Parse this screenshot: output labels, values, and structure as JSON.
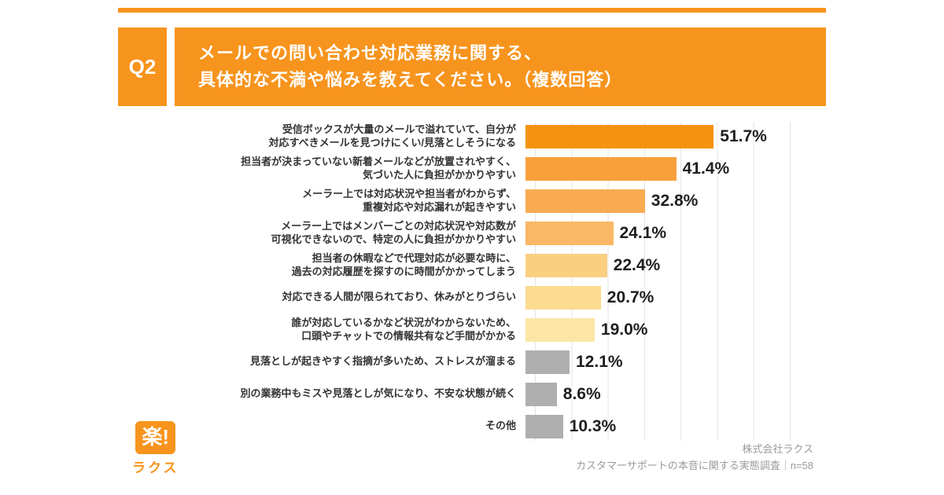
{
  "header": {
    "q_label": "Q2",
    "title_lines": [
      "メールでの問い合わせ対応業務に関する、",
      "具体的な不満や悩みを教えてください。（複数回答）"
    ]
  },
  "chart_data": {
    "type": "bar",
    "orientation": "horizontal",
    "title": "",
    "xlabel": "",
    "ylabel": "",
    "xlim": [
      0,
      70
    ],
    "grid": true,
    "categories": [
      "受信ボックスが大量のメールで溢れていて、自分が\n対応すべきメールを見つけにくい/見落としそうになる",
      "担当者が決まっていない新着メールなどが放置されやすく、\n気づいた人に負担がかかりやすい",
      "メーラー上では対応状況や担当者がわからず、\n重複対応や対応漏れが起きやすい",
      "メーラー上ではメンバーごとの対応状況や対応数が\n可視化できないので、特定の人に負担がかかりやすい",
      "担当者の休暇などで代理対応が必要な時に、\n過去の対応履歴を探すのに時間がかかってしまう",
      "対応できる人間が限られており、休みがとりづらい",
      "誰が対応しているかなど状況がわからないため、\n口頭やチャットでの情報共有など手間がかかる",
      "見落としが起きやすく指摘が多いため、ストレスが溜まる",
      "別の業務中もミスや見落としが気になり、不安な状態が続く",
      "その他"
    ],
    "values": [
      51.7,
      41.4,
      32.8,
      24.1,
      22.4,
      20.7,
      19.0,
      12.1,
      8.6,
      10.3
    ],
    "value_labels": [
      "51.7%",
      "41.4%",
      "32.8%",
      "24.1%",
      "22.4%",
      "20.7%",
      "19.0%",
      "12.1%",
      "8.6%",
      "10.3%"
    ],
    "bar_colors": [
      "#F6930E",
      "#F8A13B",
      "#F9AB50",
      "#FAB765",
      "#FACF82",
      "#FBDB90",
      "#FCE6A6",
      "#AFAFAF",
      "#AFAFAF",
      "#AFAFAF"
    ]
  },
  "footer": {
    "logo": {
      "mark": "楽!",
      "name": "ラクス"
    },
    "source_line1": "株式会社ラクス",
    "source_line2": "カスタマーサポートの本音に関する実態調査｜n=58"
  },
  "colors": {
    "accent": "#F7941D",
    "grid": "#E4E4E4",
    "text": "#333333",
    "muted": "#9A9A9A"
  }
}
